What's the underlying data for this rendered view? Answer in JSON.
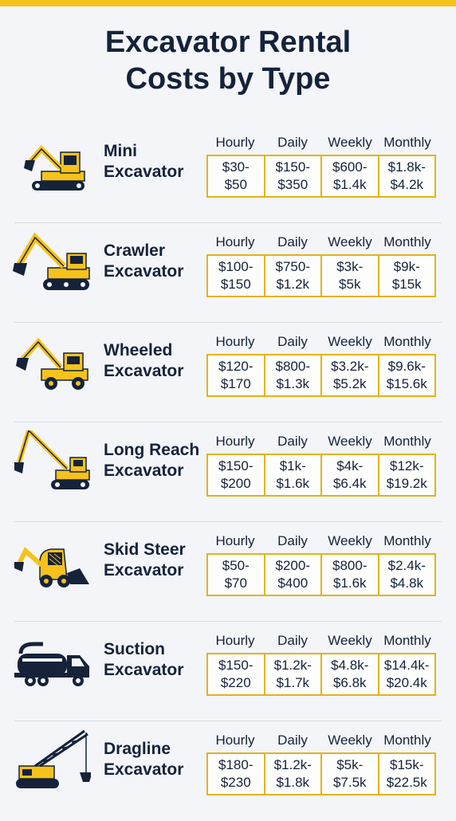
{
  "title": {
    "line1": "Excavator Rental",
    "line2": "Costs by Type"
  },
  "headers": [
    "Hourly",
    "Daily",
    "Weekly",
    "Monthly"
  ],
  "colors": {
    "accent": "#f6c21c",
    "navy": "#15223a",
    "border": "#e4b21a"
  },
  "rows": [
    {
      "icon": "mini-excavator-icon",
      "name1": "Mini",
      "name2": "Excavator",
      "cells": [
        [
          "$30-",
          "$50"
        ],
        [
          "$150-",
          "$350"
        ],
        [
          "$600-",
          "$1.4k"
        ],
        [
          "$1.8k-",
          "$4.2k"
        ]
      ]
    },
    {
      "icon": "crawler-excavator-icon",
      "name1": "Crawler",
      "name2": "Excavator",
      "cells": [
        [
          "$100-",
          "$150"
        ],
        [
          "$750-",
          "$1.2k"
        ],
        [
          "$3k-",
          "$5k"
        ],
        [
          "$9k-",
          "$15k"
        ]
      ]
    },
    {
      "icon": "wheeled-excavator-icon",
      "name1": "Wheeled",
      "name2": "Excavator",
      "cells": [
        [
          "$120-",
          "$170"
        ],
        [
          "$800-",
          "$1.3k"
        ],
        [
          "$3.2k-",
          "$5.2k"
        ],
        [
          "$9.6k-",
          "$15.6k"
        ]
      ]
    },
    {
      "icon": "long-reach-excavator-icon",
      "name1": "Long Reach",
      "name2": "Excavator",
      "cells": [
        [
          "$150-",
          "$200"
        ],
        [
          "$1k-",
          "$1.6k"
        ],
        [
          "$4k-",
          "$6.4k"
        ],
        [
          "$12k-",
          "$19.2k"
        ]
      ]
    },
    {
      "icon": "skid-steer-icon",
      "name1": "Skid Steer",
      "name2": "Excavator",
      "cells": [
        [
          "$50-",
          "$70"
        ],
        [
          "$200-",
          "$400"
        ],
        [
          "$800-",
          "$1.6k"
        ],
        [
          "$2.4k-",
          "$4.8k"
        ]
      ]
    },
    {
      "icon": "suction-truck-icon",
      "name1": "Suction",
      "name2": "Excavator",
      "cells": [
        [
          "$150-",
          "$220"
        ],
        [
          "$1.2k-",
          "$1.7k"
        ],
        [
          "$4.8k-",
          "$6.8k"
        ],
        [
          "$14.4k-",
          "$20.4k"
        ]
      ]
    },
    {
      "icon": "dragline-crane-icon",
      "name1": "Dragline",
      "name2": "Excavator",
      "cells": [
        [
          "$180-",
          "$230"
        ],
        [
          "$1.2k-",
          "$1.8k"
        ],
        [
          "$5k-",
          "$7.5k"
        ],
        [
          "$15k-",
          "$22.5k"
        ]
      ]
    }
  ]
}
